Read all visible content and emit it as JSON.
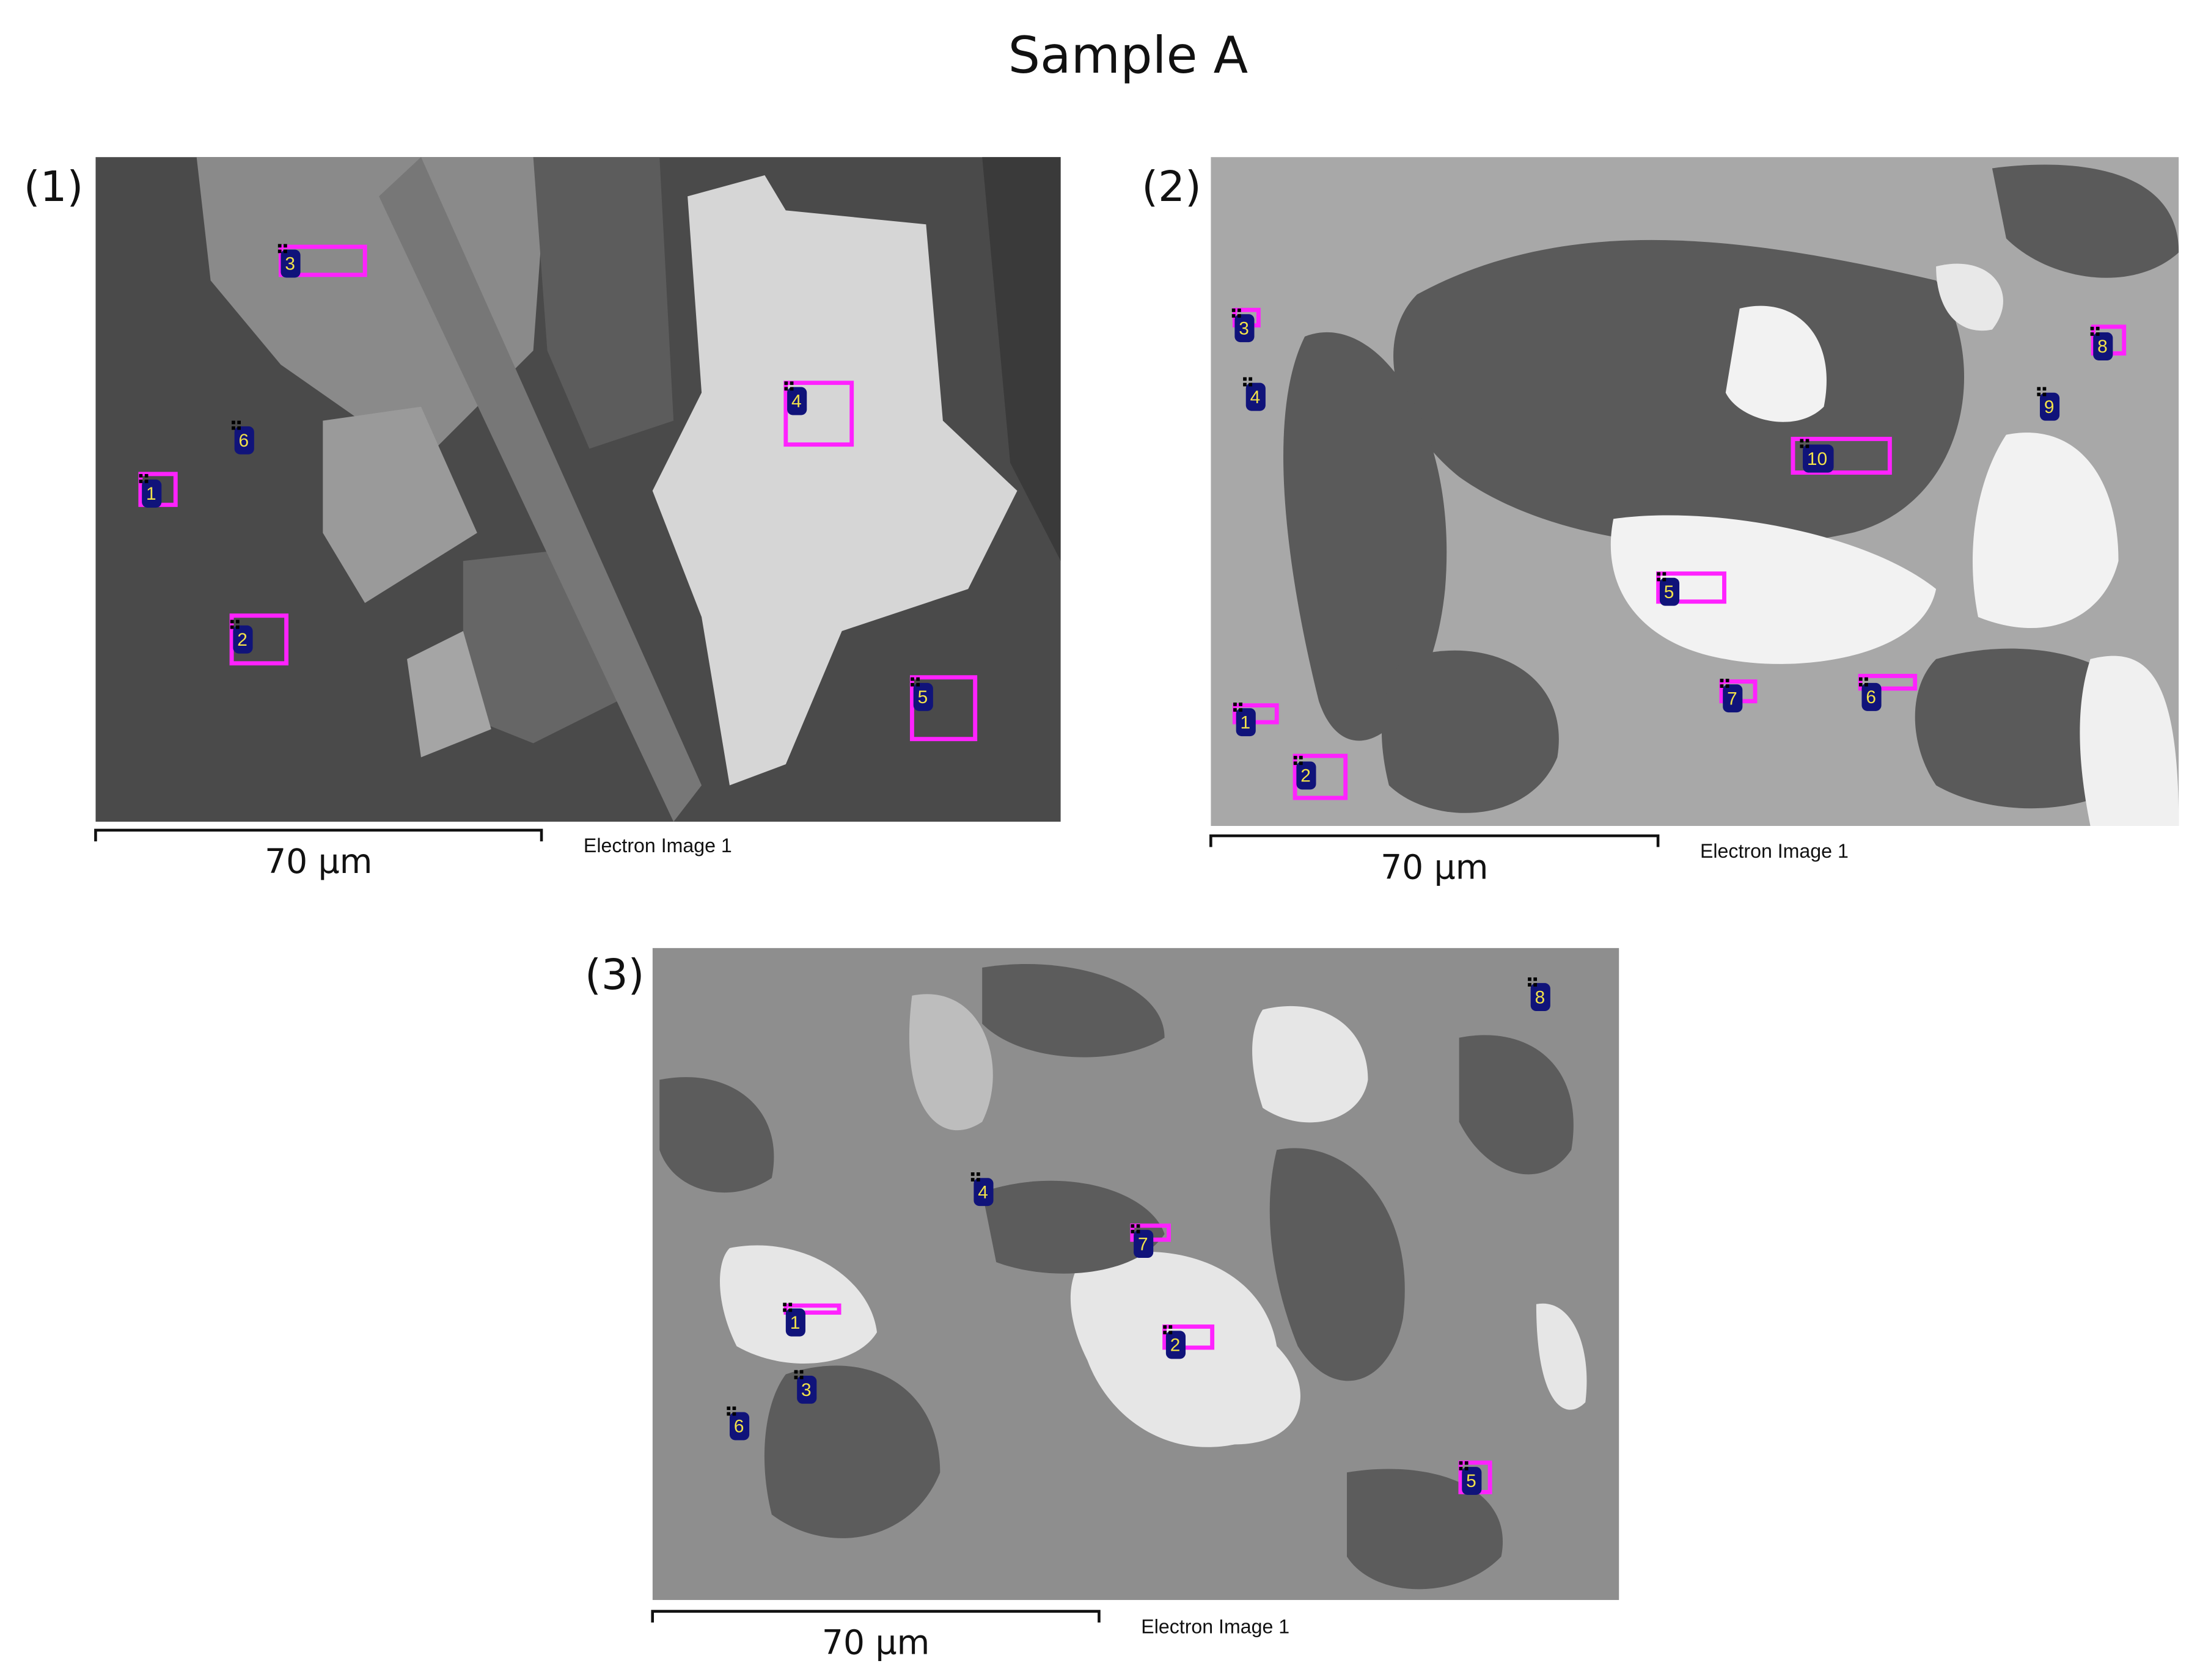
{
  "title": "Sample A",
  "panels": [
    {
      "label": "(1)",
      "scale_bar": "70 µm",
      "caption": "Electron Image 1",
      "markers": [
        "1",
        "2",
        "3",
        "4",
        "5",
        "6"
      ]
    },
    {
      "label": "(2)",
      "scale_bar": "70 µm",
      "caption": "Electron Image 1",
      "markers": [
        "1",
        "2",
        "3",
        "4",
        "5",
        "6",
        "7",
        "8",
        "9",
        "10"
      ]
    },
    {
      "label": "(3)",
      "scale_bar": "70 µm",
      "caption": "Electron Image 1",
      "markers": [
        "1",
        "2",
        "3",
        "4",
        "5",
        "6",
        "7",
        "8"
      ]
    }
  ]
}
